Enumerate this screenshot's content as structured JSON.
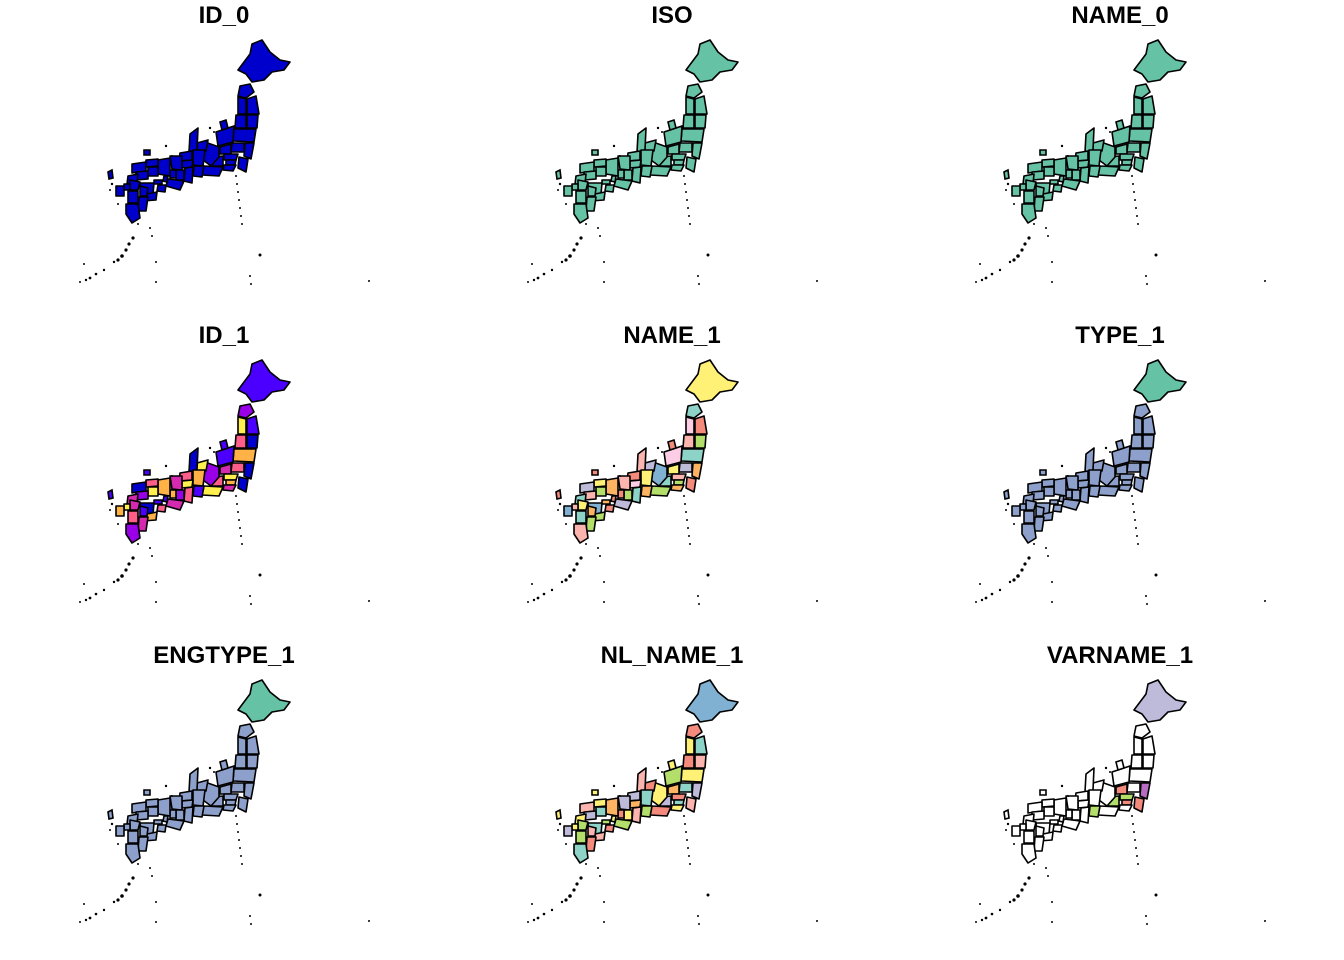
{
  "figure": {
    "type": "choropleth small multiples",
    "region": "Japan prefectures",
    "outline_color": "#000000",
    "background": "#ffffff"
  },
  "panels": [
    {
      "title": "ID_0",
      "palette": [
        "#0000CD"
      ]
    },
    {
      "title": "ISO",
      "palette": [
        "#66C2A5"
      ]
    },
    {
      "title": "NAME_0",
      "palette": [
        "#66C2A5"
      ]
    },
    {
      "title": "ID_1",
      "palette": [
        "#0000CD",
        "#4B00FF",
        "#9A00E8",
        "#D52AB0",
        "#FF5E8A",
        "#FFB347",
        "#FFF04D"
      ]
    },
    {
      "title": "NAME_1",
      "palette": [
        "#FFF176",
        "#F48A7C",
        "#8DD3C7",
        "#FBB4AE",
        "#B3DE69",
        "#BEBADA",
        "#FDB462",
        "#FCCDE5",
        "#80B1D3"
      ]
    },
    {
      "title": "TYPE_1",
      "palette": [
        "#66C2A5",
        "#8DA0CB"
      ]
    },
    {
      "title": "ENGTYPE_1",
      "palette": [
        "#66C2A5",
        "#8DA0CB"
      ]
    },
    {
      "title": "NL_NAME_1",
      "palette": [
        "#80B1D3",
        "#FFF176",
        "#F48A7C",
        "#8DD3C7",
        "#FBB4AE",
        "#B3DE69",
        "#BEBADA",
        "#FDB462"
      ]
    },
    {
      "title": "VARNAME_1",
      "palette": [
        "#BEBADA",
        "#FFFFFF",
        "#B86BC2",
        "#F48A7C",
        "#B3DE69",
        "#FFFFFF"
      ]
    }
  ]
}
